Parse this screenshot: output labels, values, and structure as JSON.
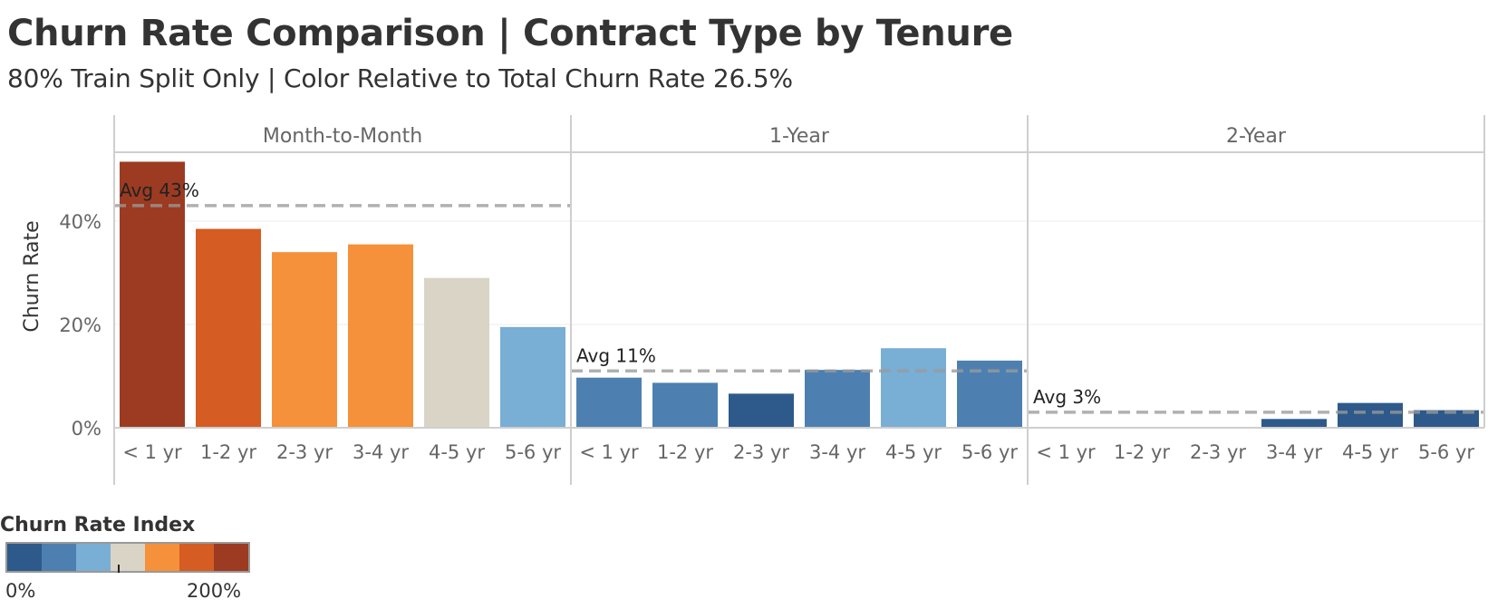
{
  "title": "Churn Rate Comparison | Contract Type by Tenure",
  "subtitle": "80% Train Split Only | Color Relative to Total Churn Rate 26.5%",
  "chart_data": {
    "type": "bar",
    "ylabel": "Churn Rate",
    "xlabel": "",
    "ylim": [
      0,
      55
    ],
    "yticks": [
      0,
      20,
      40
    ],
    "ytick_labels": [
      "0%",
      "20%",
      "40%"
    ],
    "grid": true,
    "categories": [
      "< 1 yr",
      "1-2 yr",
      "2-3 yr",
      "3-4 yr",
      "4-5 yr",
      "5-6 yr"
    ],
    "panels": [
      {
        "name": "Month-to-Month",
        "values": [
          51.5,
          38.5,
          34,
          35.5,
          29,
          19.5
        ],
        "colors": [
          "#9c3b22",
          "#d55c23",
          "#f5913a",
          "#f5913a",
          "#d9d4c6",
          "#79aed5"
        ],
        "avg": 43,
        "avg_label": "Avg 43%"
      },
      {
        "name": "1-Year",
        "values": [
          9.7,
          8.7,
          6.6,
          11.2,
          15.4,
          13
        ],
        "colors": [
          "#4d80b0",
          "#4d80b0",
          "#2d5a8a",
          "#4d80b0",
          "#79aed5",
          "#4d80b0"
        ],
        "avg": 11,
        "avg_label": "Avg 11%"
      },
      {
        "name": "2-Year",
        "values": [
          0,
          0,
          0,
          1.7,
          4.8,
          3.4
        ],
        "colors": [
          "#2d5a8a",
          "#2d5a8a",
          "#2d5a8a",
          "#2d5a8a",
          "#2d5a8a",
          "#2d5a8a"
        ],
        "avg": 3,
        "avg_label": "Avg 3%"
      }
    ],
    "legend": {
      "title": "Churn Rate Index",
      "min_label": "0%",
      "max_label": "200%",
      "colors": [
        "#2d5a8a",
        "#4d80b0",
        "#79aed5",
        "#d9d4c6",
        "#f5913a",
        "#d55c23",
        "#9c3b22"
      ],
      "placement": "bottom-left"
    }
  }
}
